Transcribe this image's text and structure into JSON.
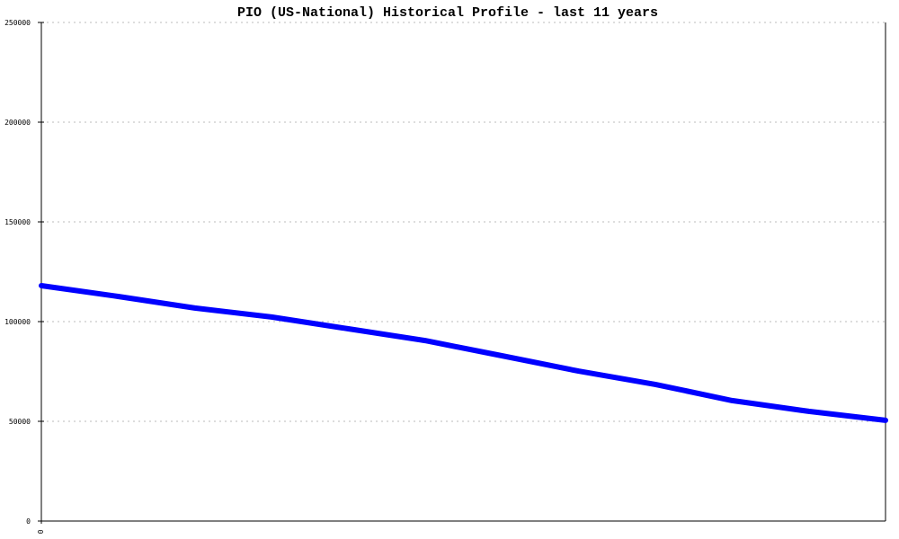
{
  "chart_data": {
    "type": "line",
    "title": "PIO (US-National) Historical Profile - last 11 years",
    "xlabel": "",
    "ylabel": "",
    "ylim": [
      0,
      250000
    ],
    "yticks": [
      "0",
      "50000",
      "100000",
      "150000",
      "200000",
      "250000"
    ],
    "xticks": [
      "0"
    ],
    "grid": true,
    "line_color": "#0000ff",
    "x": [
      0,
      1,
      2,
      3,
      4,
      5,
      6,
      7,
      8,
      9,
      10,
      11
    ],
    "values": [
      118000,
      112600,
      106800,
      102300,
      96400,
      90500,
      82900,
      75200,
      68500,
      60400,
      55000,
      50500
    ]
  }
}
